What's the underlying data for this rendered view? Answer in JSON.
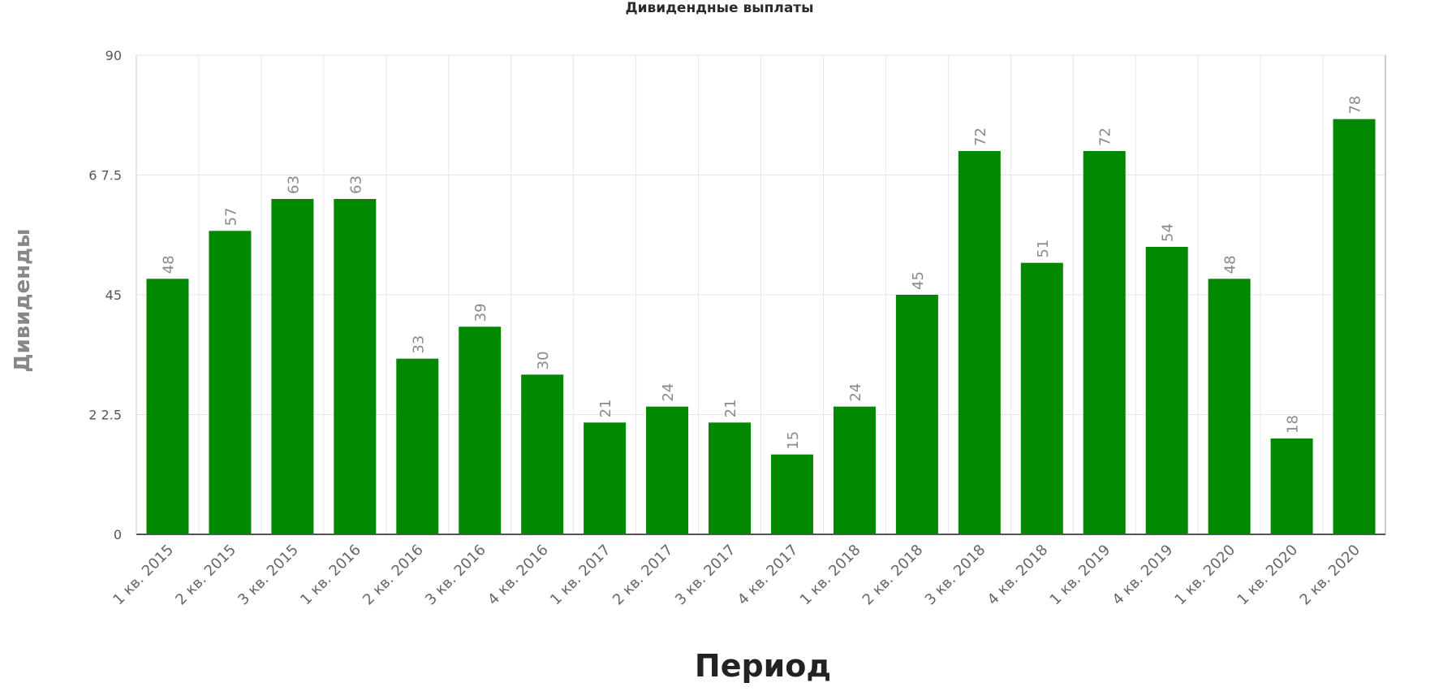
{
  "chart_data": {
    "type": "bar",
    "title": "Дивидендные выплаты",
    "xlabel": "Период",
    "ylabel": "Дивиденды",
    "ylim": [
      0,
      90
    ],
    "yticks": [
      {
        "value": 0,
        "label": "0"
      },
      {
        "value": 22.5,
        "label": "2 2.5"
      },
      {
        "value": 45,
        "label": "45"
      },
      {
        "value": 67.5,
        "label": "6 7.5"
      },
      {
        "value": 90,
        "label": "90"
      }
    ],
    "grid": true,
    "categories": [
      "1 кв. 2015",
      "2 кв. 2015",
      "3 кв. 2015",
      "1 кв. 2016",
      "2 кв. 2016",
      "3 кв. 2016",
      "4 кв. 2016",
      "1 кв. 2017",
      "2 кв. 2017",
      "3 кв. 2017",
      "4 кв. 2017",
      "1 кв. 2018",
      "2 кв. 2018",
      "3 кв. 2018",
      "4 кв. 2018",
      "1 кв. 2019",
      "4 кв. 2019",
      "1 кв. 2020",
      "1 кв. 2020",
      "2 кв. 2020"
    ],
    "values": [
      48,
      57,
      63,
      63,
      33,
      39,
      30,
      21,
      24,
      21,
      15,
      24,
      45,
      72,
      51,
      72,
      54,
      48,
      18,
      78
    ],
    "colors": {
      "bar": "#008800",
      "grid": "#e6e6e6",
      "axis": "#555555"
    }
  }
}
